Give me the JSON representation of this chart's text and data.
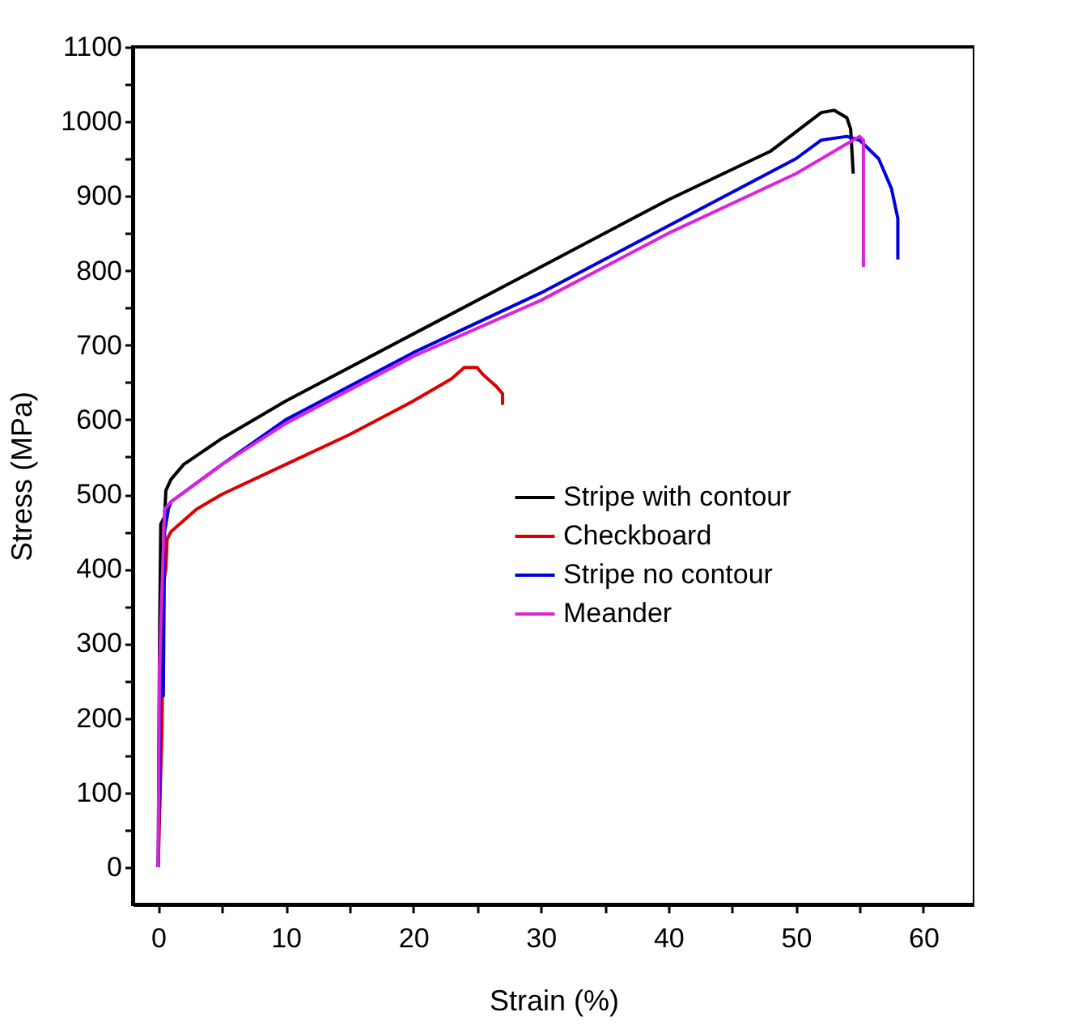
{
  "chart_data": {
    "type": "line",
    "xlabel": "Strain (%)",
    "ylabel": "Stress  (MPa)",
    "xlim": [
      -2,
      64
    ],
    "ylim": [
      -50,
      1100
    ],
    "xticks": [
      0,
      {
        "value": 5,
        "label": null
      },
      10,
      {
        "value": 15,
        "label": null
      },
      20,
      {
        "value": 25,
        "label": null
      },
      30,
      {
        "value": 35,
        "label": null
      },
      40,
      {
        "value": 45,
        "label": null
      },
      50,
      {
        "value": 55,
        "label": null
      },
      60
    ],
    "yticks": [
      0,
      {
        "value": 50,
        "label": null
      },
      100,
      {
        "value": 150,
        "label": null
      },
      200,
      {
        "value": 250,
        "label": null
      },
      300,
      {
        "value": 350,
        "label": null
      },
      400,
      {
        "value": 450,
        "label": null
      },
      500,
      {
        "value": 550,
        "label": null
      },
      600,
      {
        "value": 650,
        "label": null
      },
      700,
      {
        "value": 750,
        "label": null
      },
      800,
      {
        "value": 850,
        "label": null
      },
      900,
      {
        "value": 950,
        "label": null
      },
      1000,
      {
        "value": 1050,
        "label": null
      },
      1100
    ],
    "grid": false,
    "legend": "right",
    "line_style": "solid",
    "series": [
      {
        "name": "Stripe with contour",
        "color": "#000000",
        "x": [
          0,
          0.1,
          0.2,
          0.5,
          0.6,
          1,
          2,
          5,
          10,
          20,
          30,
          40,
          48,
          52,
          53,
          54,
          54.3,
          54.5
        ],
        "values": [
          0,
          300,
          460,
          470,
          505,
          520,
          540,
          575,
          625,
          715,
          805,
          895,
          960,
          1012,
          1015,
          1005,
          990,
          930
        ]
      },
      {
        "name": "Checkboard",
        "color": "#dd0000",
        "x": [
          0,
          0.3,
          0.4,
          0.6,
          0.7,
          1,
          3,
          5,
          10,
          15,
          20,
          23,
          24,
          25,
          25.5,
          26.5,
          27,
          27
        ],
        "values": [
          0,
          190,
          380,
          400,
          440,
          450,
          480,
          500,
          540,
          580,
          625,
          655,
          670,
          670,
          660,
          645,
          635,
          620
        ]
      },
      {
        "name": "Stripe no contour",
        "color": "#0000dd",
        "x": [
          0,
          0.2,
          0.4,
          0.5,
          0.8,
          1,
          5,
          10,
          20,
          30,
          40,
          50,
          52,
          54,
          55,
          56.5,
          57.5,
          58,
          58
        ],
        "values": [
          0,
          260,
          230,
          450,
          480,
          490,
          540,
          600,
          690,
          770,
          860,
          950,
          975,
          980,
          975,
          950,
          910,
          870,
          815
        ]
      },
      {
        "name": "Meander",
        "color": "#dd22dd",
        "x": [
          0,
          0.1,
          0.5,
          1,
          5,
          10,
          20,
          30,
          40,
          50,
          54,
          55,
          55.3,
          55.3
        ],
        "values": [
          0,
          270,
          480,
          490,
          540,
          595,
          685,
          760,
          850,
          930,
          970,
          980,
          975,
          805
        ]
      }
    ]
  }
}
